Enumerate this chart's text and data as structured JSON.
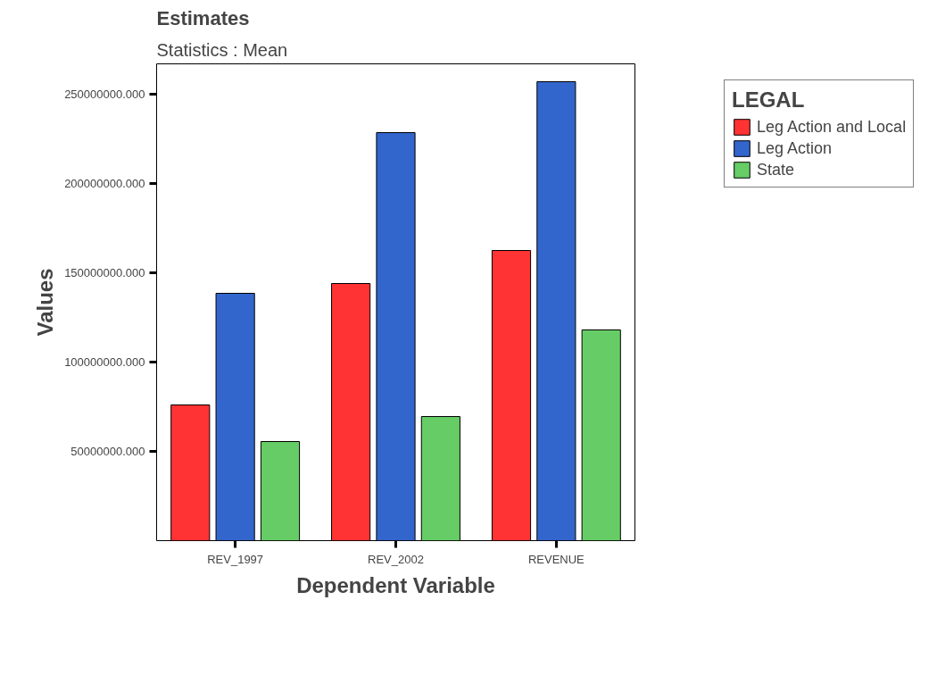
{
  "chart_data": {
    "type": "bar",
    "title": "Estimates",
    "subtitle": "Statistics : Mean",
    "xlabel": "Dependent Variable",
    "ylabel": "Values",
    "legend_title": "LEGAL",
    "categories": [
      "REV_1997",
      "REV_2002",
      "REVENUE"
    ],
    "series": [
      {
        "name": "Leg Action and Local",
        "color": "#ff3333",
        "values": [
          76000000,
          144000000,
          162500000
        ]
      },
      {
        "name": "Leg Action",
        "color": "#3366cc",
        "values": [
          138500000,
          228500000,
          257000000
        ]
      },
      {
        "name": "State",
        "color": "#66cc66",
        "values": [
          55500000,
          69500000,
          118000000
        ]
      }
    ],
    "ylim": [
      0,
      267000000
    ],
    "yticks": [
      {
        "value": 50000000,
        "label": "50000000.000"
      },
      {
        "value": 100000000,
        "label": "100000000.000"
      },
      {
        "value": 150000000,
        "label": "150000000.000"
      },
      {
        "value": 200000000,
        "label": "200000000.000"
      },
      {
        "value": 250000000,
        "label": "250000000.000"
      }
    ],
    "grid": false,
    "legend": "top right"
  }
}
